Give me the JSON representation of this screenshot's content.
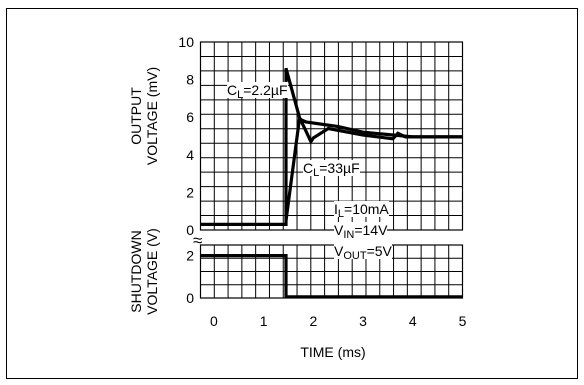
{
  "chart_data": {
    "type": "line",
    "xlabel": "TIME (ms)",
    "x_ticks": [
      0,
      1,
      2,
      3,
      4,
      5
    ],
    "xlim": [
      -0.27,
      5
    ],
    "panels": [
      {
        "ylabel": [
          "OUTPUT",
          "VOLTAGE (mV)"
        ],
        "y_ticks": [
          0,
          2,
          4,
          6,
          8,
          10
        ],
        "ylim": [
          0,
          10
        ],
        "grid": true,
        "series": [
          {
            "name_parts": [
              "C",
              "L",
              "=2.2µF"
            ],
            "x": [
              -0.27,
              1.45,
              1.45,
              1.72,
              1.95,
              2.0,
              2.3,
              3.0,
              3.6,
              3.7,
              3.85,
              5.0
            ],
            "y": [
              0.3,
              0.3,
              8.6,
              6.0,
              4.7,
              4.9,
              5.4,
              5.05,
              4.85,
              5.15,
              4.95,
              4.95
            ]
          },
          {
            "name_parts": [
              "C",
              "L",
              "=33µF"
            ],
            "x": [
              1.45,
              1.72,
              1.85,
              2.5,
              3.0,
              4.0,
              5.0
            ],
            "y": [
              0.5,
              5.9,
              5.75,
              5.5,
              5.2,
              4.95,
              4.95
            ]
          }
        ]
      },
      {
        "ylabel": [
          "SHUTDOWN",
          "VOLTAGE (V)"
        ],
        "y_ticks": [
          0,
          2
        ],
        "ylim": [
          0,
          2.5
        ],
        "grid": true,
        "series": [
          {
            "name": "shutdown",
            "x": [
              -0.27,
              1.45,
              1.45,
              5.0
            ],
            "y": [
              2.0,
              2.0,
              0.05,
              0.05
            ]
          }
        ]
      }
    ],
    "conditions": [
      [
        "I",
        "L",
        "=10mA"
      ],
      [
        "V",
        "IN",
        "=14V"
      ],
      [
        "V",
        "OUT",
        "=5V"
      ]
    ],
    "axis_break_symbol": "≈"
  }
}
